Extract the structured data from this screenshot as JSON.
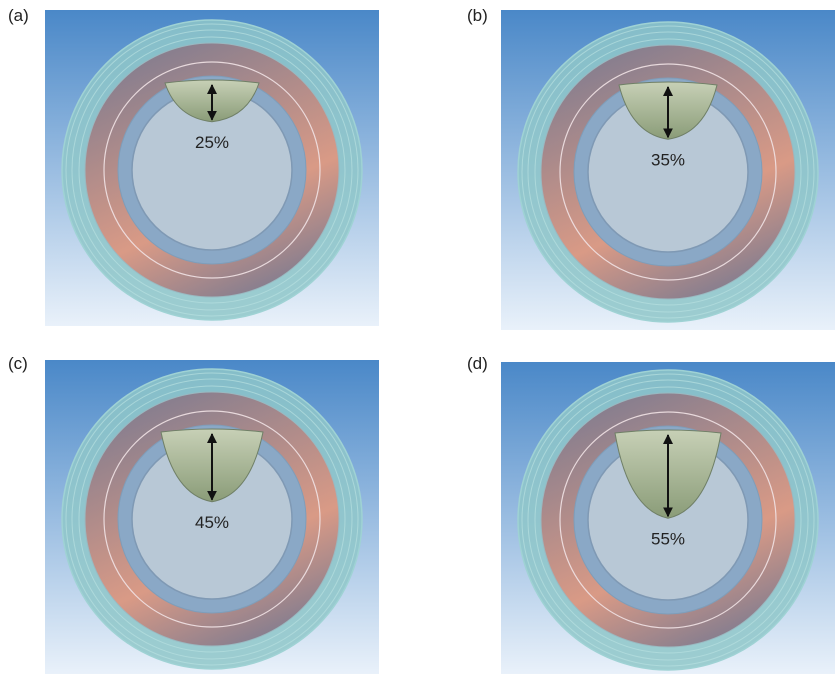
{
  "colors": {
    "sky_top": "#4a88c8",
    "sky_bottom": "#e9f1fa",
    "outer_ring": "#8fc7c9",
    "mid_ring": "#8a7f8e",
    "warm_tint": "#d99a86",
    "inner_ring": "#8aa8c6",
    "lumen": "#b8c8d6",
    "leaflet_top": "#c7d0b6",
    "leaflet_bottom": "#8a9c78",
    "arrow": "#111111"
  },
  "panels": [
    {
      "label": "(a)",
      "percent_text": "25%",
      "percent_value": 25
    },
    {
      "label": "(b)",
      "percent_text": "35%",
      "percent_value": 35
    },
    {
      "label": "(c)",
      "percent_text": "45%",
      "percent_value": 45
    },
    {
      "label": "(d)",
      "percent_text": "55%",
      "percent_value": 55
    }
  ]
}
